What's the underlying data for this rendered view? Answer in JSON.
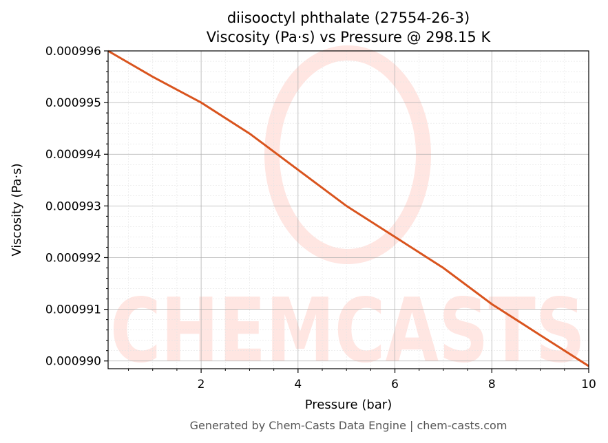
{
  "chart_data": {
    "type": "line",
    "title": "diisooctyl phthalate (27554-26-3)",
    "subtitle": "Viscosity (Pa·s) vs Pressure @ 298.15 K",
    "xlabel": "Pressure (bar)",
    "ylabel": "Viscosity (Pa·s)",
    "xlim": [
      0.08,
      10
    ],
    "ylim": [
      0.00098985,
      0.000996
    ],
    "x_ticks": [
      2,
      4,
      6,
      8,
      10
    ],
    "x_tick_labels": [
      "2",
      "4",
      "6",
      "8",
      "10"
    ],
    "y_ticks": [
      0.00099,
      0.000991,
      0.000992,
      0.000993,
      0.000994,
      0.000995,
      0.000996
    ],
    "y_tick_labels": [
      "0.000990",
      "0.000991",
      "0.000992",
      "0.000993",
      "0.000994",
      "0.000995",
      "0.000996"
    ],
    "grid": true,
    "minor_grid": true,
    "line_color": "#d9541e",
    "series": [
      {
        "x": [
          0.08,
          1,
          2,
          3,
          4,
          5,
          6,
          7,
          8,
          9,
          10
        ],
        "values": [
          0.000996,
          0.0009955,
          0.000995,
          0.0009944,
          0.0009937,
          0.000993,
          0.0009924,
          0.0009918,
          0.0009911,
          0.0009905,
          0.0009899
        ]
      }
    ]
  },
  "watermark": {
    "text": "CHEMCASTS",
    "color": "#ffe6e2"
  },
  "footer": "Generated by Chem-Casts Data Engine | chem-casts.com"
}
